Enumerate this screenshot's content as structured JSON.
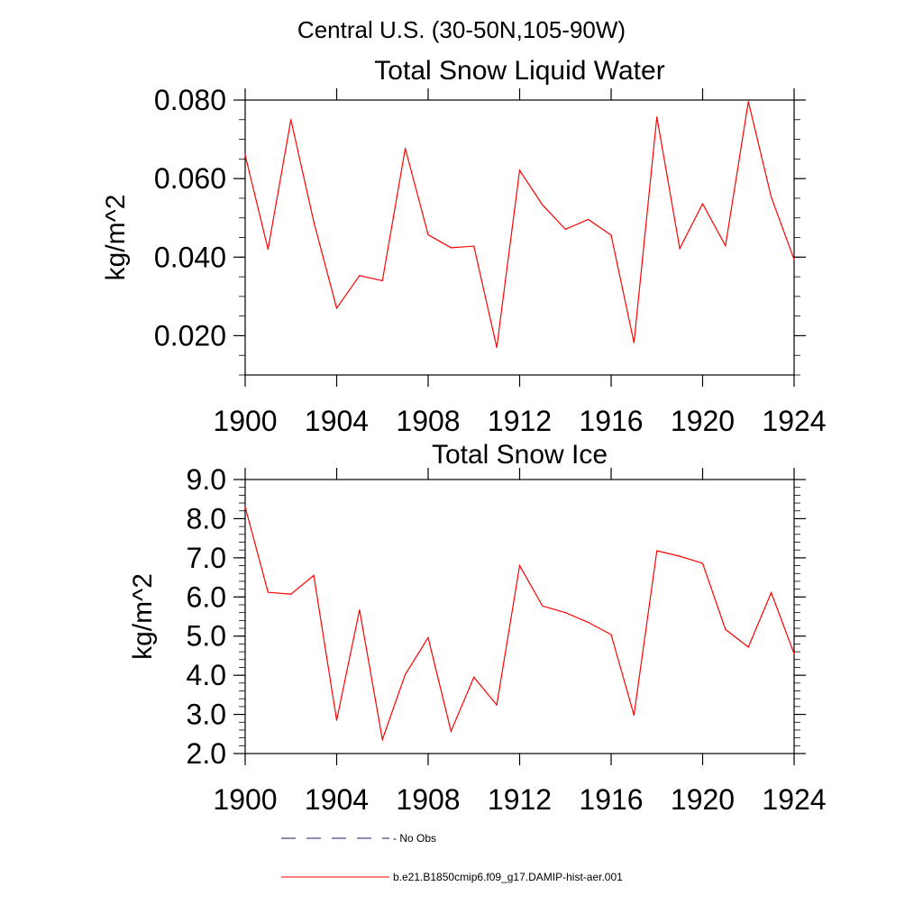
{
  "figure_title": "Central U.S. (30-50N,105-90W)",
  "chart_data": [
    {
      "type": "line",
      "title": "Total Snow Liquid Water",
      "xlabel": "",
      "ylabel": "kg/m^2",
      "xlim": [
        1900,
        1924
      ],
      "ylim": [
        0.01,
        0.08
      ],
      "x_ticks": [
        1900,
        1904,
        1908,
        1912,
        1916,
        1920,
        1924
      ],
      "x_tick_labels": [
        "1900",
        "1904",
        "1908",
        "1912",
        "1916",
        "1920",
        "1924"
      ],
      "y_ticks": [
        0.02,
        0.04,
        0.06,
        0.08
      ],
      "y_tick_labels": [
        "0.020",
        "0.040",
        "0.060",
        "0.080"
      ],
      "grid": false,
      "series": [
        {
          "name": "b.e21.B1850cmip6.f09_g17.DAMIP-hist-aer.001",
          "color": "#ff0000",
          "x": [
            1900,
            1901,
            1902,
            1903,
            1904,
            1905,
            1906,
            1907,
            1908,
            1909,
            1910,
            1911,
            1912,
            1913,
            1914,
            1915,
            1916,
            1917,
            1918,
            1919,
            1920,
            1921,
            1922,
            1923,
            1924
          ],
          "values": [
            0.066,
            0.042,
            0.075,
            0.049,
            0.027,
            0.0353,
            0.034,
            0.0677,
            0.0457,
            0.0424,
            0.0428,
            0.017,
            0.0621,
            0.0533,
            0.0471,
            0.0496,
            0.0456,
            0.0182,
            0.0757,
            0.0422,
            0.0536,
            0.0429,
            0.0796,
            0.0553,
            0.0394
          ]
        }
      ]
    },
    {
      "type": "line",
      "title": "Total Snow Ice",
      "xlabel": "",
      "ylabel": "kg/m^2",
      "xlim": [
        1900,
        1924
      ],
      "ylim": [
        2.0,
        9.0
      ],
      "x_ticks": [
        1900,
        1904,
        1908,
        1912,
        1916,
        1920,
        1924
      ],
      "x_tick_labels": [
        "1900",
        "1904",
        "1908",
        "1912",
        "1916",
        "1920",
        "1924"
      ],
      "y_ticks": [
        2.0,
        3.0,
        4.0,
        5.0,
        6.0,
        7.0,
        8.0,
        9.0
      ],
      "y_tick_labels": [
        "2.0",
        "3.0",
        "4.0",
        "5.0",
        "6.0",
        "7.0",
        "8.0",
        "9.0"
      ],
      "grid": false,
      "series": [
        {
          "name": "b.e21.B1850cmip6.f09_g17.DAMIP-hist-aer.001",
          "color": "#ff0000",
          "x": [
            1900,
            1901,
            1902,
            1903,
            1904,
            1905,
            1906,
            1907,
            1908,
            1909,
            1910,
            1911,
            1912,
            1913,
            1914,
            1915,
            1916,
            1917,
            1918,
            1919,
            1920,
            1921,
            1922,
            1923,
            1924
          ],
          "values": [
            8.3,
            6.12,
            6.07,
            6.55,
            2.85,
            5.67,
            2.36,
            4.02,
            4.96,
            2.57,
            3.95,
            3.24,
            6.8,
            5.77,
            5.6,
            5.35,
            5.04,
            2.98,
            7.18,
            7.04,
            6.86,
            5.17,
            4.72,
            6.11,
            4.55
          ]
        }
      ]
    }
  ],
  "legend": {
    "placement": "bottom",
    "items": [
      {
        "label": "No Obs",
        "style": "dashed",
        "color": "#1a1a66"
      },
      {
        "label": "b.e21.B1850cmip6.f09_g17.DAMIP-hist-aer.001",
        "style": "solid",
        "color": "#ff0000"
      }
    ]
  }
}
